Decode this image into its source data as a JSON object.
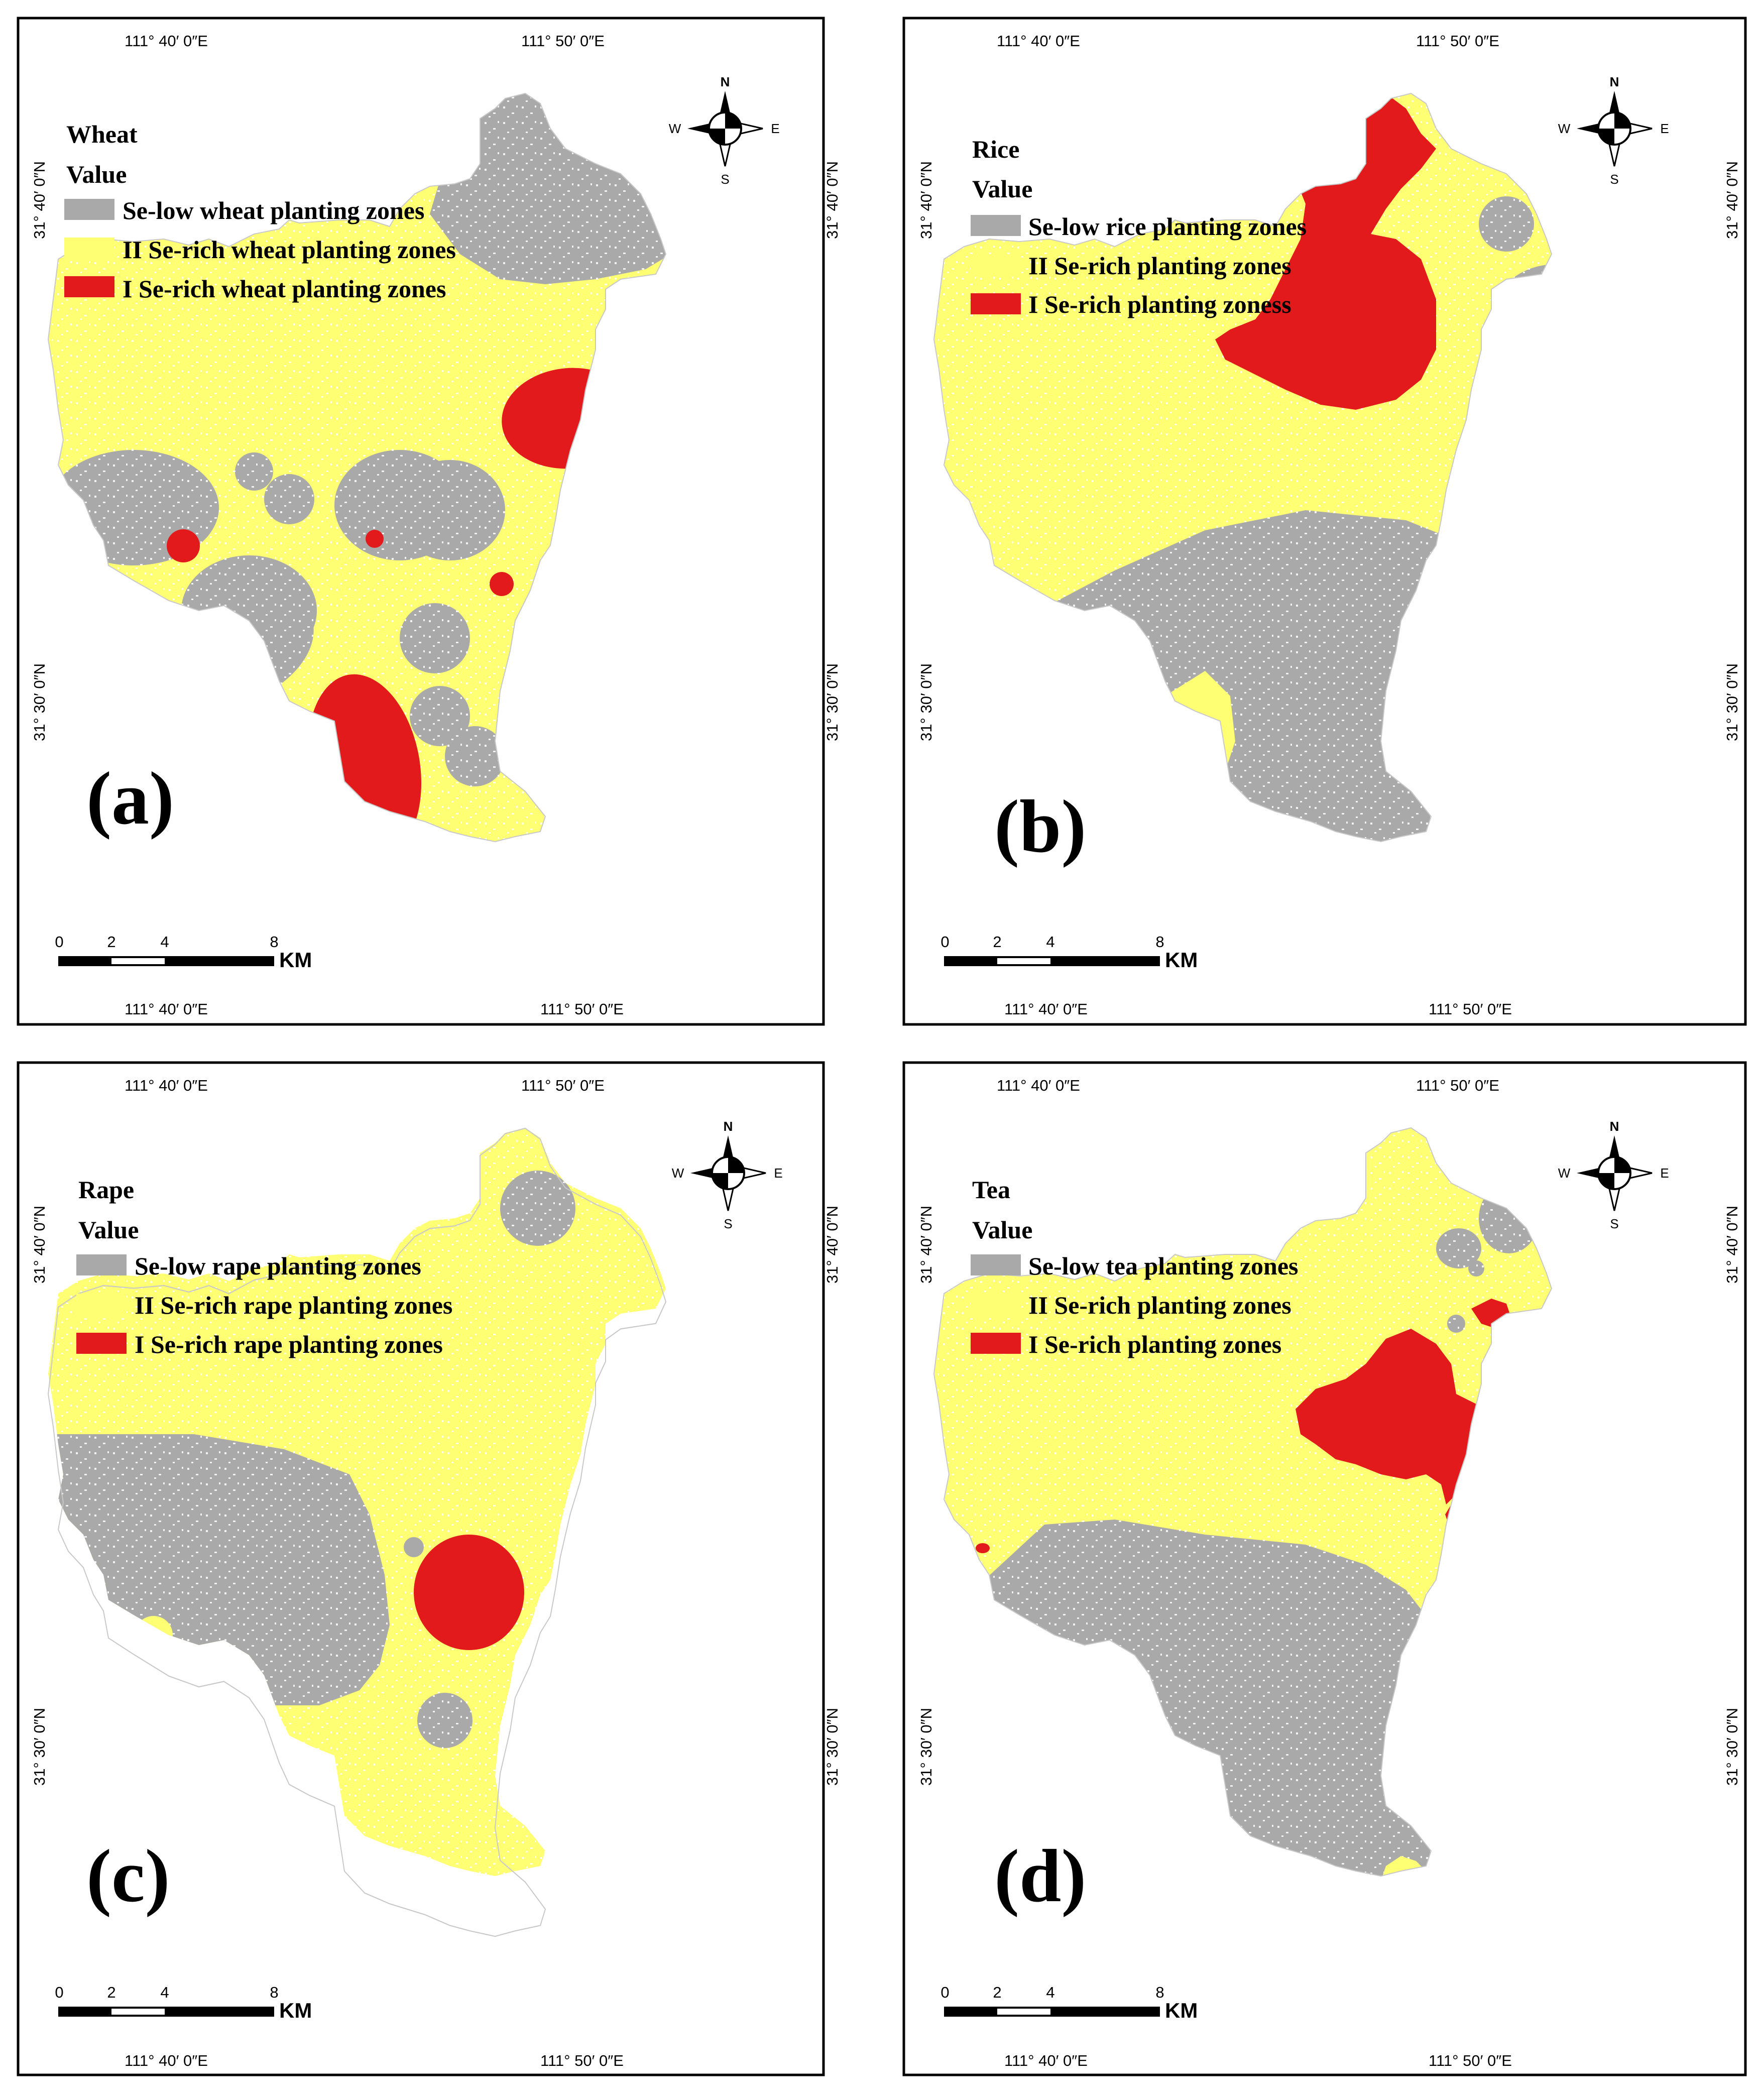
{
  "colors": {
    "low": "#a9a9a9",
    "rich2": "#ffff73",
    "rich1": "#e31a1c",
    "frame": "#000000",
    "background": "#ffffff"
  },
  "coords": {
    "lon_left": "111° 40′ 0″E",
    "lon_right": "111° 50′ 0″E",
    "lat_top": "31° 40′ 0″N",
    "lat_bottom": "31° 30′ 0″N"
  },
  "compass": {
    "n": "N",
    "s": "S",
    "e": "E",
    "w": "W",
    "icon": "north-arrow-icon"
  },
  "scale": {
    "labels": [
      "0",
      "2",
      "4",
      "8"
    ],
    "unit": "KM"
  },
  "panels": [
    {
      "id": "a",
      "label": "(a)",
      "crop": "Wheat",
      "value_title": "Value",
      "legend": [
        "Se-low wheat planting zones",
        "II Se-rich wheat planting zones",
        "I Se-rich wheat planting zones"
      ]
    },
    {
      "id": "b",
      "label": "(b)",
      "crop": "Rice",
      "value_title": "Value",
      "legend": [
        "Se-low rice planting zones",
        "II Se-rich planting zones",
        "I Se-rich planting zoness"
      ]
    },
    {
      "id": "c",
      "label": "(c)",
      "crop": "Rape",
      "value_title": "Value",
      "legend": [
        "Se-low rape planting zones",
        "II Se-rich rape planting zones",
        "I Se-rich rape planting zones"
      ]
    },
    {
      "id": "d",
      "label": "(d)",
      "crop": "Tea",
      "value_title": "Value",
      "legend": [
        "Se-low tea planting zones",
        "II Se-rich planting zones",
        "I Se-rich planting zones"
      ]
    }
  ]
}
